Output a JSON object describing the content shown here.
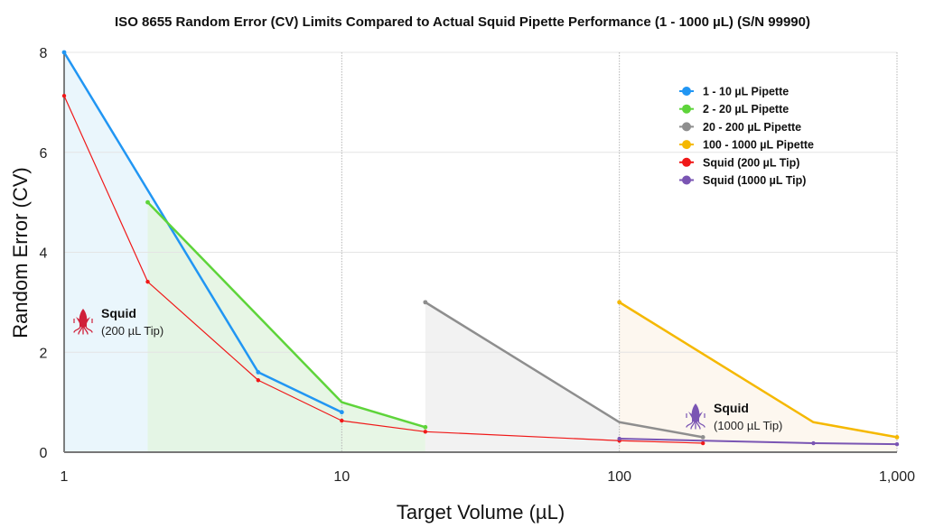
{
  "chart_data": {
    "type": "line",
    "title": "ISO 8655 Random Error (CV) Limits Compared to Actual Squid Pipette Performance (1 - 1000 µL) (S/N 99990)",
    "xlabel": "Target Volume (µL)",
    "ylabel": "Random Error (CV)",
    "xscale": "log",
    "xlim": [
      1,
      1000
    ],
    "ylim": [
      0,
      8
    ],
    "x_ticks": [
      1,
      10,
      100,
      1000
    ],
    "x_tick_labels": [
      "1",
      "10",
      "100",
      "1,000"
    ],
    "y_ticks": [
      0,
      2,
      4,
      6,
      8
    ],
    "y_tick_labels": [
      "0",
      "2",
      "4",
      "6",
      "8"
    ],
    "grid": true,
    "legend_position": "top-right",
    "series": [
      {
        "name": "1 - 10 µL Pipette",
        "color": "#2196f3",
        "fill": "#e6f4fc",
        "filled": true,
        "width": 2.5,
        "x": [
          1,
          5,
          10
        ],
        "y": [
          8.0,
          1.6,
          0.8
        ],
        "markers": [
          true,
          true,
          true
        ]
      },
      {
        "name": "2 - 20 µL Pipette",
        "color": "#5ed43a",
        "fill": "#e3f5e1",
        "filled": true,
        "width": 2.5,
        "x": [
          2,
          10,
          20
        ],
        "y": [
          5.0,
          1.0,
          0.5
        ],
        "markers": [
          true,
          false,
          true
        ]
      },
      {
        "name": "20 - 200 µL Pipette",
        "color": "#8e8e8e",
        "fill": "#f0f0f0",
        "filled": true,
        "width": 2.5,
        "x": [
          20,
          100,
          200
        ],
        "y": [
          3.0,
          0.6,
          0.3
        ],
        "markers": [
          true,
          false,
          true
        ]
      },
      {
        "name": "100 - 1000 µL Pipette",
        "color": "#f5b800",
        "fill": "#fdf6ec",
        "filled": true,
        "width": 2.5,
        "x": [
          100,
          500,
          1000
        ],
        "y": [
          3.0,
          0.6,
          0.3
        ],
        "markers": [
          true,
          false,
          true
        ]
      },
      {
        "name": "Squid (200 µL Tip)",
        "color": "#f01818",
        "filled": false,
        "width": 1.2,
        "x": [
          1,
          2,
          5,
          10,
          20,
          100,
          200
        ],
        "y": [
          7.13,
          3.41,
          1.44,
          0.63,
          0.41,
          0.23,
          0.18
        ],
        "markers": [
          true,
          true,
          true,
          true,
          true,
          true,
          true
        ]
      },
      {
        "name": "Squid (1000 µL Tip)",
        "color": "#7a55b3",
        "filled": false,
        "width": 2,
        "x": [
          100,
          500,
          1000
        ],
        "y": [
          0.27,
          0.18,
          0.16
        ],
        "markers": [
          true,
          true,
          true
        ]
      }
    ],
    "annotations": [
      {
        "label": "Squid",
        "sublabel": "(200 µL Tip)",
        "color": "#d0203a",
        "x": 1.1,
        "y": 2.6
      },
      {
        "label": "Squid",
        "sublabel": "(1000 µL Tip)",
        "color": "#7a55b3",
        "x": 230,
        "y": 0.6
      }
    ]
  }
}
